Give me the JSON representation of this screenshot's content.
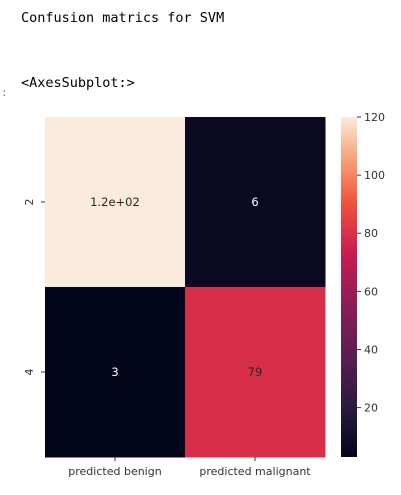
{
  "output": {
    "stdout": "Confusion matrics for SVM",
    "repr": "<AxesSubplot:>",
    "prompt_mark": ":"
  },
  "chart_data": {
    "type": "heatmap",
    "title": "",
    "xlabel": "",
    "ylabel": "",
    "x_categories": [
      "predicted benign",
      "predicted malignant"
    ],
    "y_categories": [
      "2",
      "4"
    ],
    "values": [
      [
        120,
        6
      ],
      [
        3,
        79
      ]
    ],
    "annotations": [
      [
        "1.2e+02",
        "6"
      ],
      [
        "3",
        "79"
      ]
    ],
    "colorbar": {
      "min": 3,
      "max": 120,
      "ticks": [
        20,
        40,
        60,
        80,
        100,
        120
      ]
    },
    "colormap": "rocket",
    "annotation_colors": {
      "dark_cell": "#ffffff",
      "light_cell": "#262626"
    }
  }
}
